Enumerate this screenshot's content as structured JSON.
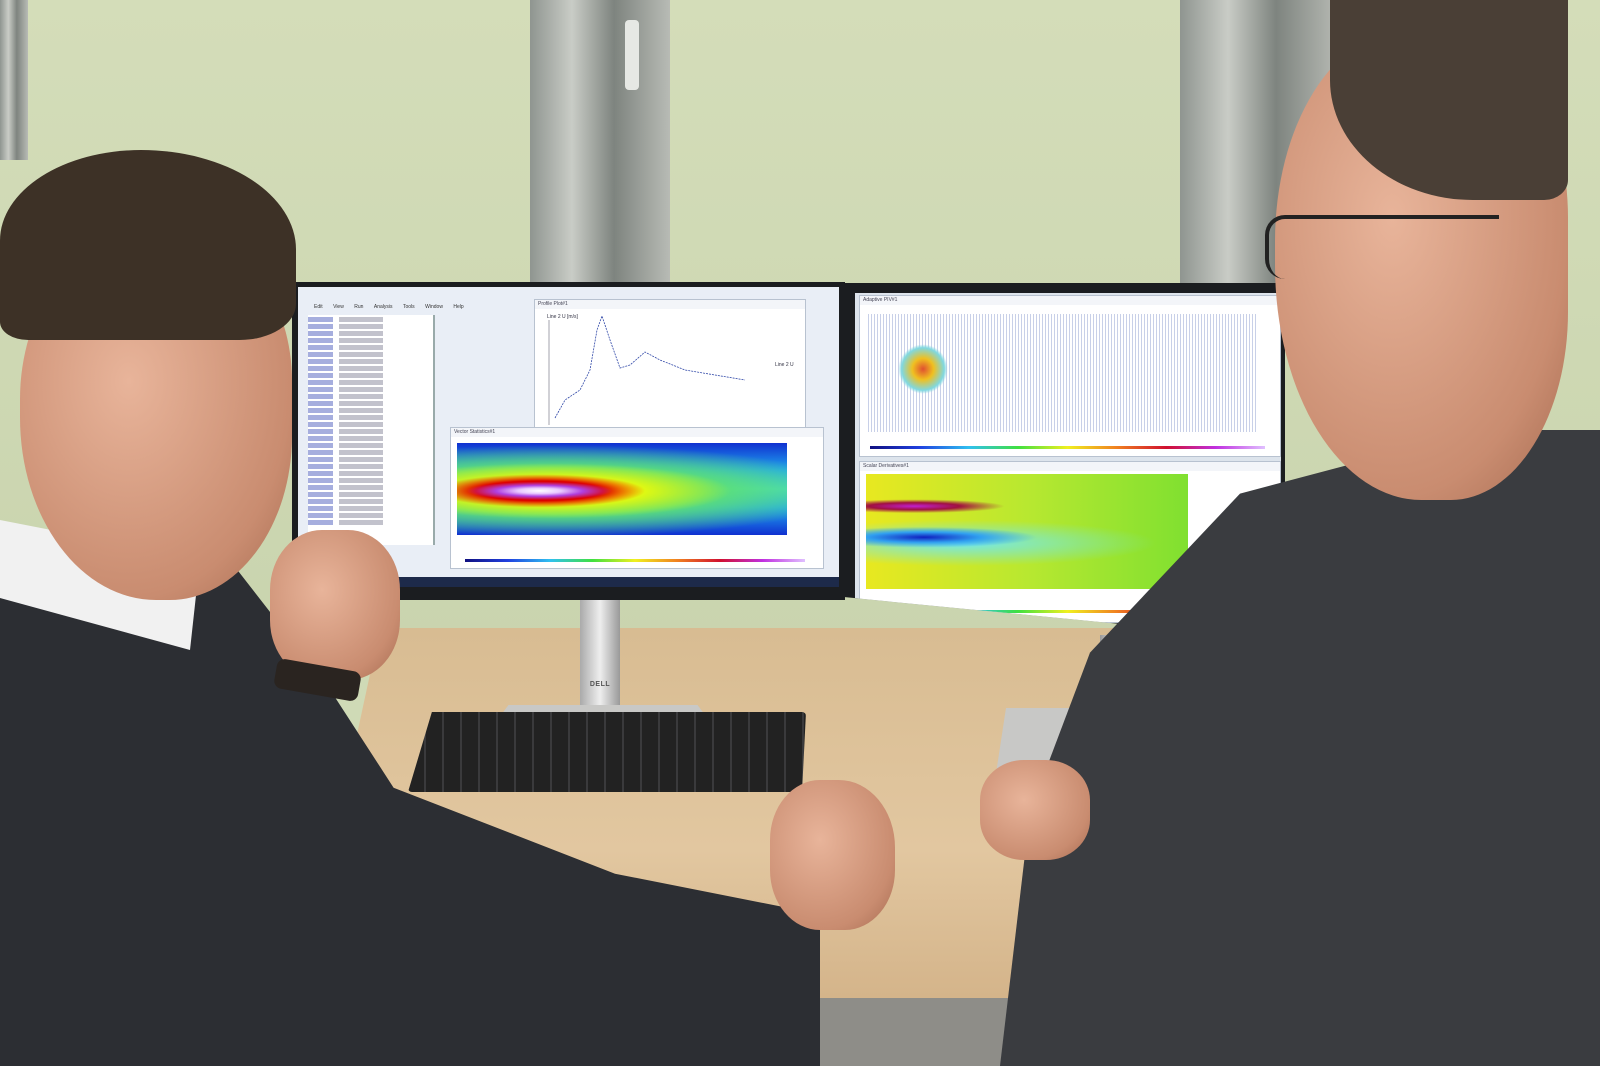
{
  "scene": {
    "description_free": true,
    "left_monitor": {
      "menu": [
        "Edit",
        "View",
        "Run",
        "Analysis",
        "Tools",
        "Window",
        "Help"
      ],
      "windows": {
        "profile_plot": {
          "title": "Profile Plot#1",
          "axis_label": "Line 2 U [m/s]",
          "legend": "Line 2 U"
        },
        "vector_statistics": {
          "title": "Vector Statistics#1"
        }
      }
    },
    "right_monitor": {
      "windows": {
        "adaptive_piv": {
          "title": "Adaptive PIV#1"
        },
        "scalar_derivatives": {
          "title": "Scalar Derivatives#1"
        }
      }
    },
    "monitor_brand": "DELL",
    "colors": {
      "wall": "#cfdab6",
      "desk": "#dcbf96",
      "suit": "#2c2e33"
    }
  }
}
